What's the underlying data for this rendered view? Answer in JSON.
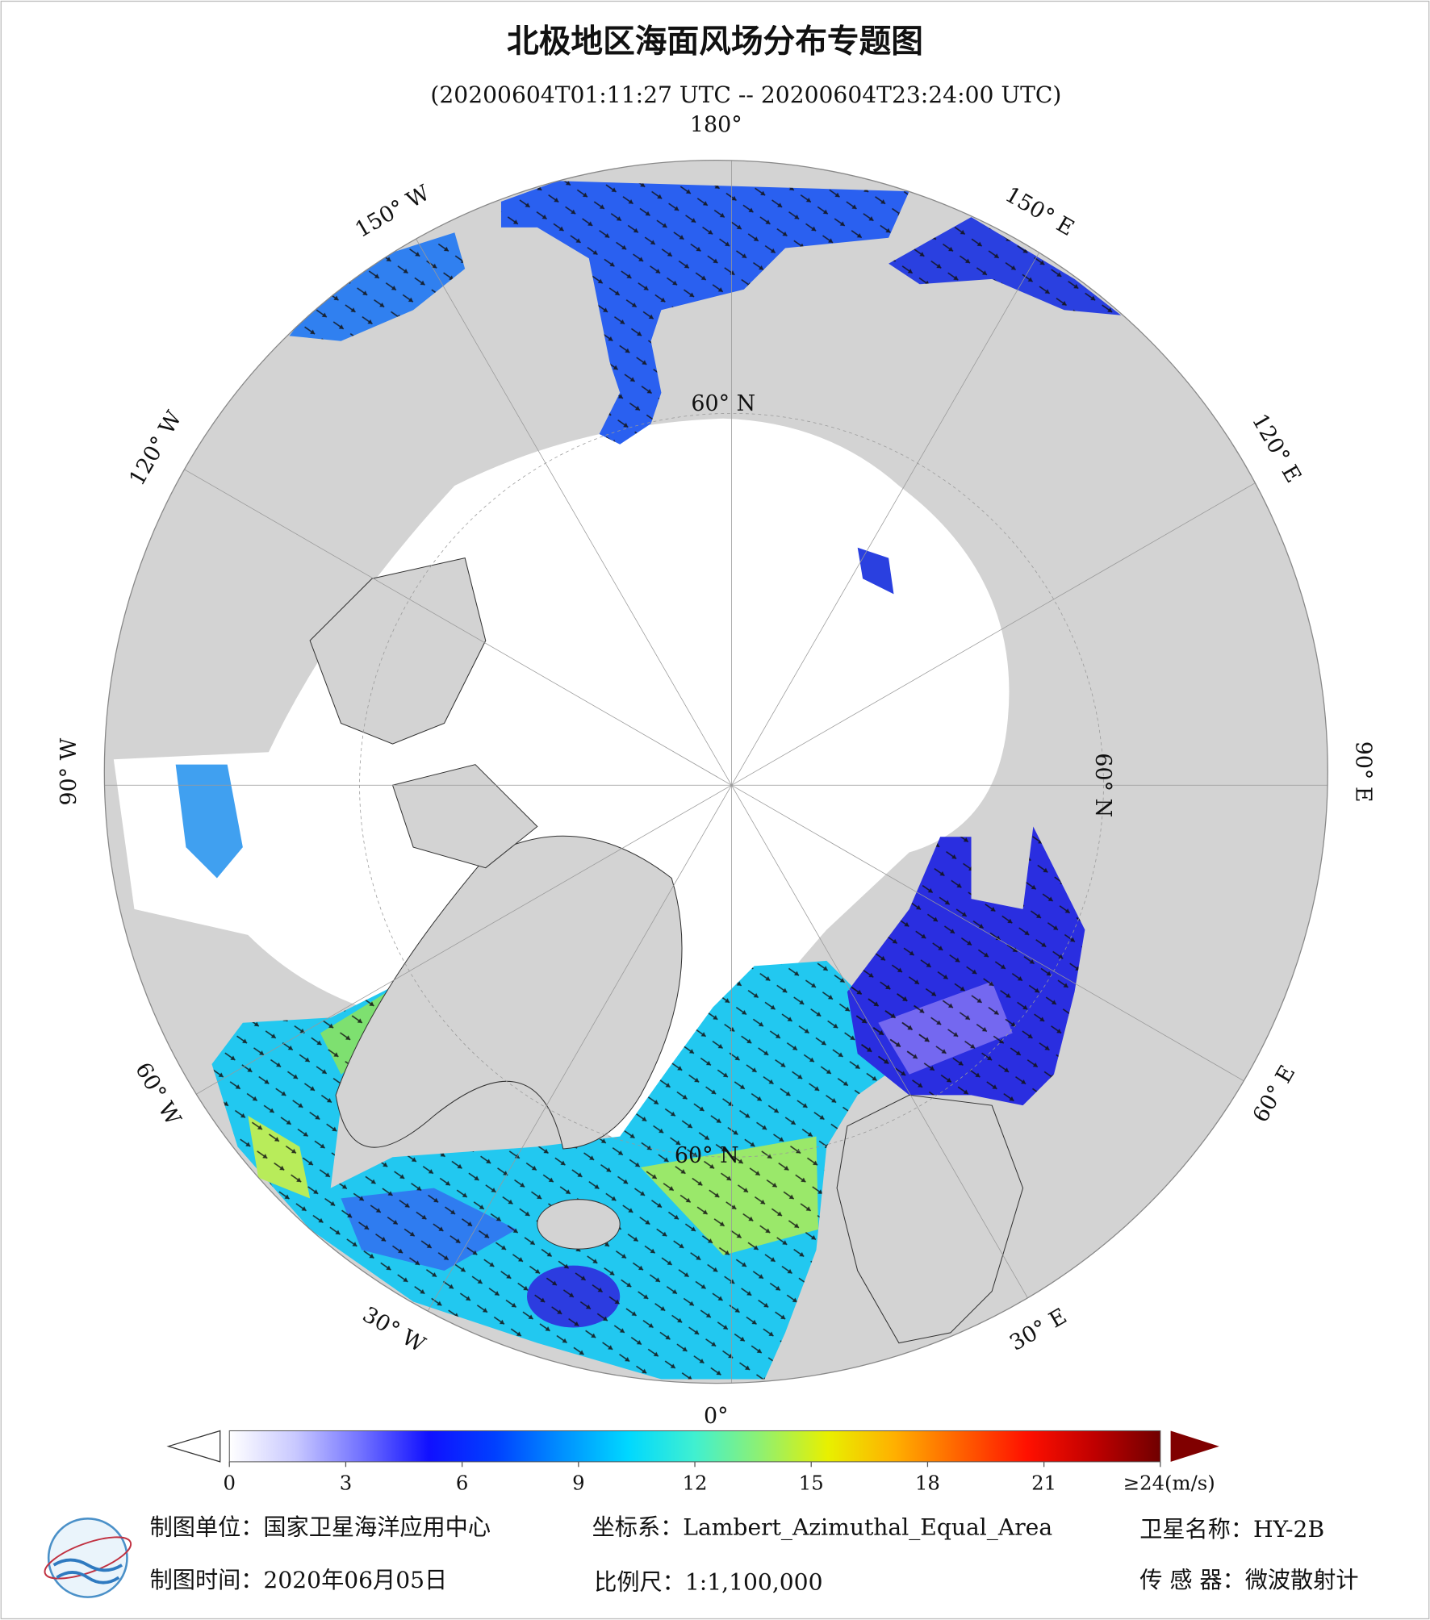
{
  "header": {
    "title": "北极地区海面风场分布专题图",
    "time_range": "(20200604T01:11:27 UTC -- 20200604T23:24:00 UTC)"
  },
  "map": {
    "longitude_labels": [
      "180°",
      "150° W",
      "120° W",
      "90° W",
      "60° W",
      "30° W",
      "0°",
      "30° E",
      "60° E",
      "90° E",
      "120° E",
      "150° E"
    ],
    "latitude_labels": [
      "60° N",
      "60° N",
      "60° N"
    ]
  },
  "colorbar": {
    "lim": [
      0,
      24
    ],
    "ticks": [
      0,
      3,
      6,
      9,
      12,
      15,
      18,
      21,
      {
        "value": 24,
        "label": "≥24(m/s)"
      }
    ],
    "colors": [
      "#ffffff",
      "#c8c8ff",
      "#7070ff",
      "#1010ff",
      "#0040ff",
      "#0090ff",
      "#00d8ff",
      "#40f0d0",
      "#90f070",
      "#e8f000",
      "#ffb000",
      "#ff6000",
      "#ff1000",
      "#c00000",
      "#700000"
    ],
    "under_color": "#ffffff",
    "over_color": "#800000"
  },
  "footer": {
    "producer": "制图单位：国家卫星海洋应用中心",
    "projection": "坐标系：Lambert_Azimuthal_Equal_Area",
    "satellite": "卫星名称：HY-2B",
    "date": "制图时间：2020年06月05日",
    "scale": "比例尺：1:1,100,000",
    "sensor": "传 感 器：微波散射计"
  }
}
